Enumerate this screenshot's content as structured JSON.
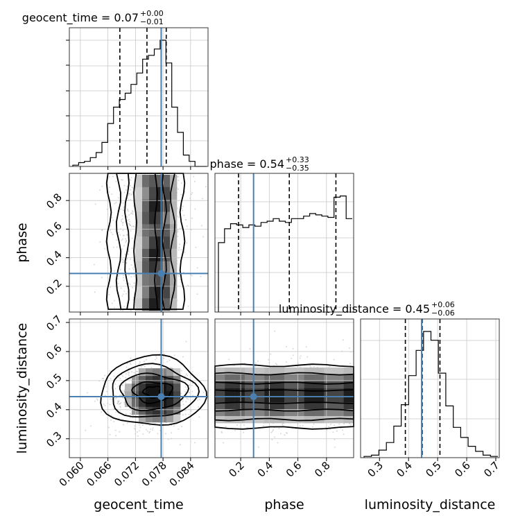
{
  "chart_data": {
    "type": "corner",
    "parameters": [
      "geocent_time",
      "phase",
      "luminosity_distance"
    ],
    "axis_labels": {
      "geocent_time": "geocent_time",
      "phase": "phase",
      "luminosity_distance": "luminosity_distance"
    },
    "ranges": {
      "geocent_time": [
        0.0576,
        0.0878
      ],
      "phase": [
        0.02,
        0.99
      ],
      "luminosity_distance": [
        0.235,
        0.712
      ]
    },
    "ticks": {
      "geocent_time": [
        "0.060",
        "0.066",
        "0.072",
        "0.078",
        "0.084"
      ],
      "phase": [
        "0.2",
        "0.4",
        "0.6",
        "0.8"
      ],
      "luminosity_distance": [
        "0.3",
        "0.4",
        "0.5",
        "0.6",
        "0.7"
      ]
    },
    "titles": [
      {
        "param": "geocent_time",
        "name": "geocent_time",
        "median": "0.07",
        "plus": "+0.00",
        "minus": "−0.01"
      },
      {
        "param": "phase",
        "name": "phase",
        "median": "0.54",
        "plus": "+0.33",
        "minus": "−0.35"
      },
      {
        "param": "luminosity_distance",
        "name": "luminosity_distance",
        "median": "0.45",
        "plus": "+0.06",
        "minus": "−0.06"
      }
    ],
    "quantiles": {
      "geocent_time": [
        0.0686,
        0.0745,
        0.0787
      ],
      "phase": [
        0.185,
        0.54,
        0.866
      ],
      "luminosity_distance": [
        0.389,
        0.447,
        0.508
      ]
    },
    "truths": {
      "geocent_time": 0.0776,
      "phase": 0.29,
      "luminosity_distance": 0.445
    },
    "histograms": {
      "geocent_time": [
        0.01,
        0.03,
        0.04,
        0.07,
        0.11,
        0.19,
        0.34,
        0.47,
        0.53,
        0.58,
        0.65,
        0.74,
        0.85,
        0.88,
        0.93,
        1.0,
        0.82,
        0.47,
        0.27,
        0.09,
        0.04,
        0.0,
        0.0
      ],
      "phase": [
        0.55,
        0.66,
        0.7,
        0.69,
        0.67,
        0.69,
        0.68,
        0.71,
        0.72,
        0.74,
        0.72,
        0.71,
        0.74,
        0.74,
        0.76,
        0.78,
        0.77,
        0.76,
        0.75,
        0.91,
        0.92,
        0.74
      ],
      "luminosity_distance": [
        0.01,
        0.02,
        0.06,
        0.12,
        0.25,
        0.42,
        0.65,
        0.85,
        1.0,
        0.93,
        0.67,
        0.41,
        0.24,
        0.16,
        0.09,
        0.05,
        0.02,
        0.01
      ]
    },
    "grid": true
  }
}
